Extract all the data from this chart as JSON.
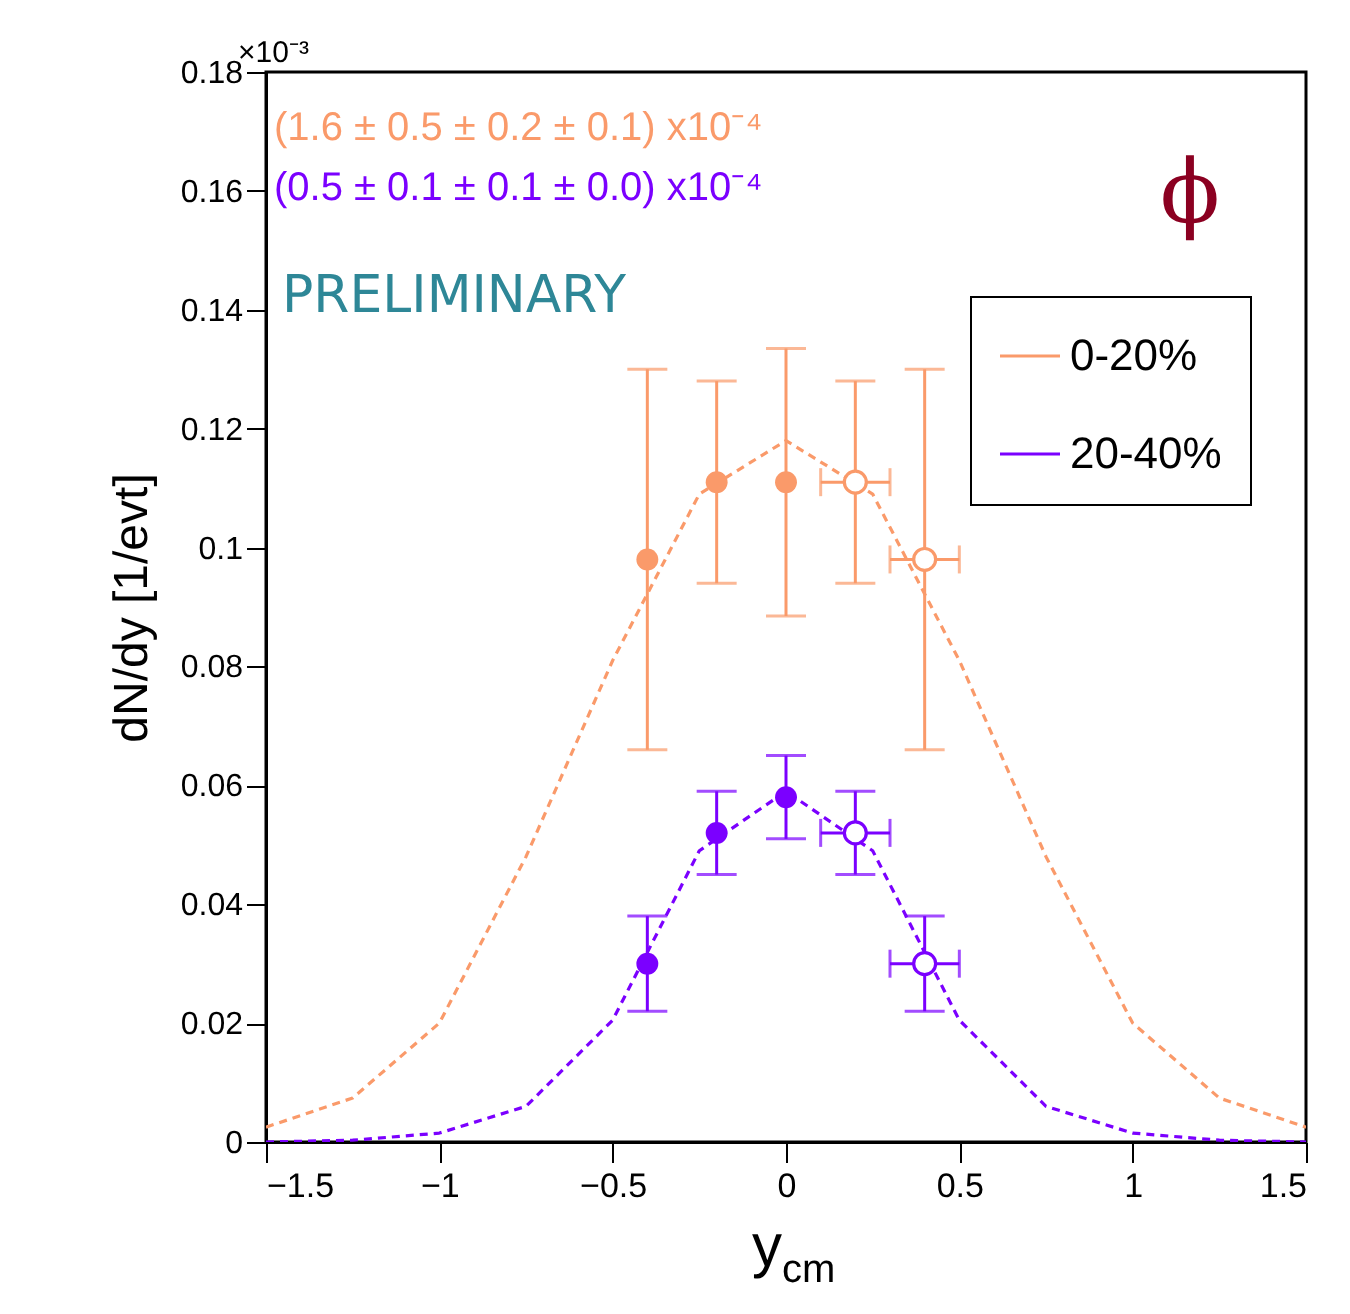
{
  "chart_data": {
    "type": "scatter",
    "xlabel": "y$_{cm}$",
    "ylabel": "dN/dy [1/evt]",
    "xlim": [
      -1.5,
      1.5
    ],
    "xticks": [
      {
        "value": -1.5,
        "label": "−1.5"
      },
      {
        "value": -1,
        "label": "−1"
      },
      {
        "value": -0.5,
        "label": "−0.5"
      },
      0,
      0.5,
      1,
      1.5
    ],
    "ylim": [
      0,
      0.18
    ],
    "yticks": [
      0,
      0.02,
      0.04,
      0.06,
      0.08,
      0.1,
      0.12,
      0.14,
      0.16,
      0.18
    ],
    "grid": false,
    "legend": "top right",
    "marker": "circle",
    "annotations": [
      "(1.6 ± 0.5 ± 0.2 ± 0.1) x10⁻⁴",
      "(0.5 ± 0.1 ± 0.1 ± 0.0) x10⁻⁴",
      "PRELIMINARY",
      "ϕ",
      "×10⁻³"
    ],
    "series": [
      {
        "name": "0-20%",
        "color": "#fa9a6a",
        "x": [
          -0.4,
          -0.2,
          0
        ],
        "values": [
          0.098,
          0.111,
          0.111
        ],
        "errors": [
          0.032,
          0.017,
          0.0225
        ]
      },
      {
        "color": "#fa9a6a",
        "x": [
          0.2,
          0.4
        ],
        "values": [
          0.111,
          0.098
        ],
        "errors": [
          0.017,
          0.032
        ],
        "xerrors": [
          0.1,
          0.1
        ]
      },
      {
        "name": "20-40%",
        "color": "#7b00ff",
        "x": [
          -0.4,
          -0.2,
          0
        ],
        "values": [
          0.03,
          0.052,
          0.058
        ],
        "errors": [
          0.008,
          0.007,
          0.007
        ]
      },
      {
        "color": "#7b00ff",
        "x": [
          0.2,
          0.4
        ],
        "values": [
          0.052,
          0.03
        ],
        "errors": [
          0.007,
          0.008
        ],
        "xerrors": [
          0.1,
          0.1
        ]
      },
      {
        "type": "line",
        "line_style": "dashed",
        "marker": "none",
        "color": "#fa9a6a",
        "x": [
          -1.5,
          -1.25,
          -1,
          -0.75,
          -0.5,
          -0.25,
          0,
          0.25,
          0.5,
          0.75,
          1,
          1.25,
          1.5
        ],
        "values": [
          0.0025,
          0.0074,
          0.02,
          0.048,
          0.081,
          0.109,
          0.118,
          0.109,
          0.081,
          0.048,
          0.02,
          0.0074,
          0.0025
        ]
      },
      {
        "type": "line",
        "line_style": "dashed",
        "marker": "none",
        "color": "#7b00ff",
        "x": [
          -1.5,
          -1.25,
          -1,
          -0.75,
          -0.5,
          -0.25,
          0,
          0.25,
          0.5,
          0.75,
          1,
          1.25,
          1.5
        ],
        "values": [
          0,
          0.0003,
          0.0015,
          0.006,
          0.0205,
          0.049,
          0.059,
          0.049,
          0.0205,
          0.006,
          0.0015,
          0.0003,
          0
        ]
      }
    ]
  }
}
